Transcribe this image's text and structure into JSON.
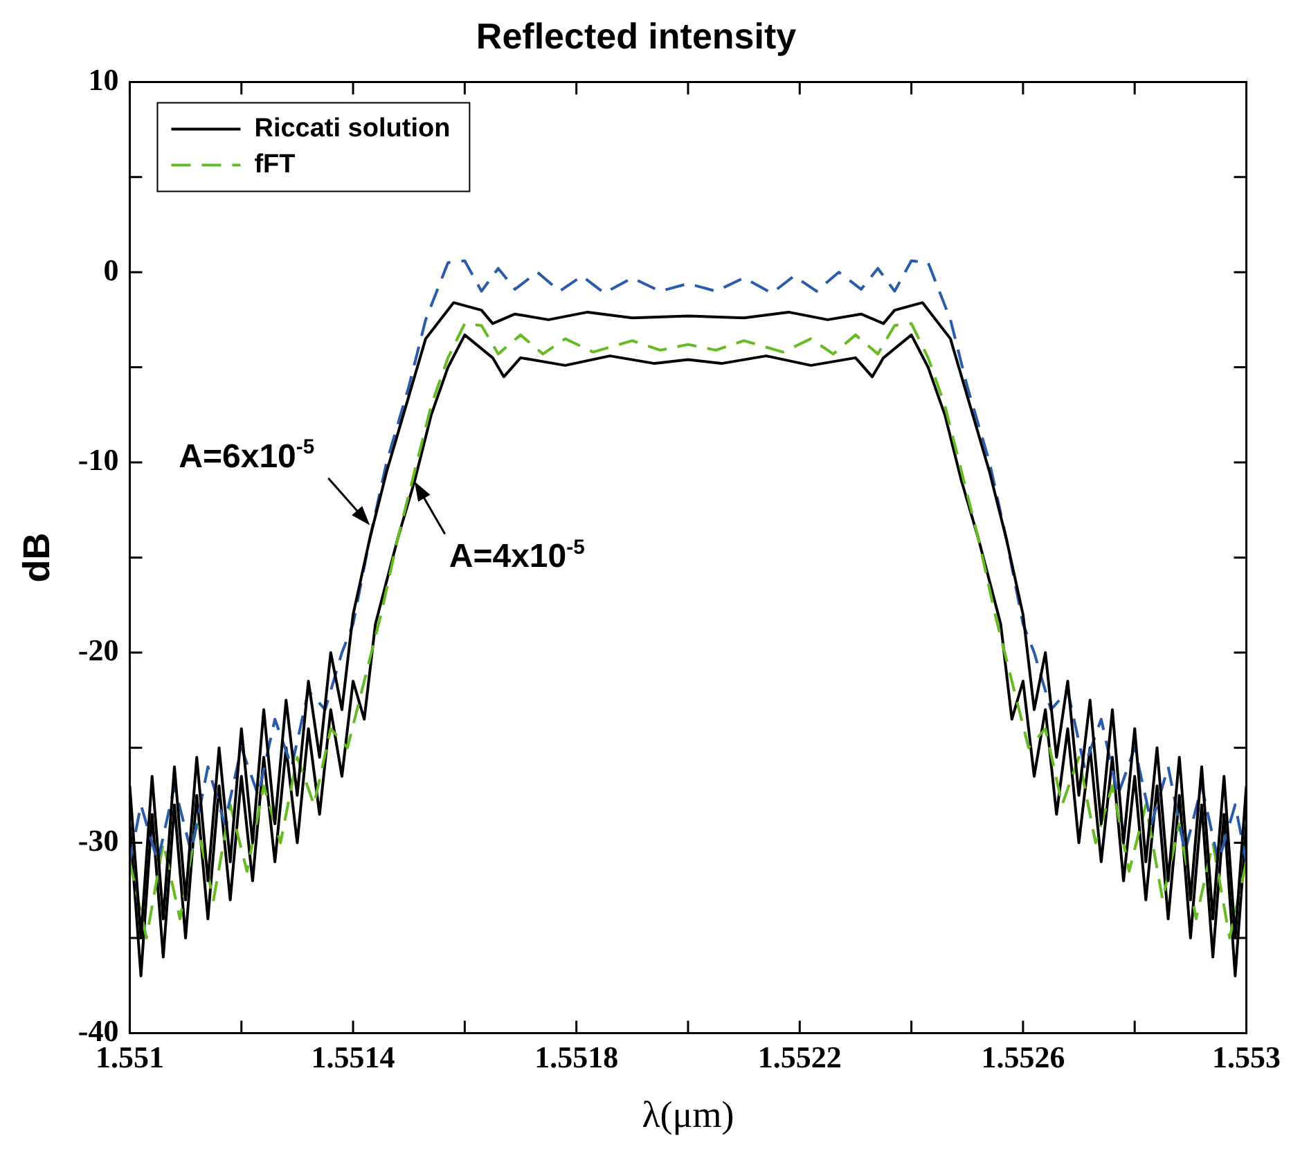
{
  "chart_data": {
    "type": "line",
    "title": "Reflected intensity",
    "xlabel": "λ(μm)",
    "ylabel": "dB",
    "xlim": [
      1.551,
      1.553
    ],
    "xticks": [
      1.551,
      {
        "value": 1.5512,
        "label": null
      },
      1.5514,
      {
        "value": 1.5516,
        "label": null
      },
      1.5518,
      {
        "value": 1.552,
        "label": null
      },
      1.5522,
      {
        "value": 1.5524,
        "label": null
      },
      1.5526,
      {
        "value": 1.5528,
        "label": null
      },
      1.553
    ],
    "ylim": [
      -40,
      10
    ],
    "yticks": [
      -40,
      {
        "value": -35,
        "label": null
      },
      -30,
      {
        "value": -25,
        "label": null
      },
      -20,
      {
        "value": -15,
        "label": null
      },
      -10,
      {
        "value": -5,
        "label": null
      },
      0,
      {
        "value": 5,
        "label": null
      },
      10
    ],
    "legend": "top left",
    "marker": "none",
    "annotations": [
      {
        "text": "A=6x10$^{-5}$",
        "x": 1.55143,
        "y": -13.3
      },
      {
        "text": "A=4x10$^{-5}$",
        "x": 1.55151,
        "y": -11
      }
    ],
    "series": [
      {
        "color": "#000000",
        "line_style": "solid",
        "name": "Riccati solution",
        "x": [
          1.551,
          1.55102,
          1.55104,
          1.55106,
          1.55108,
          1.5511,
          1.55112,
          1.55114,
          1.55116,
          1.55118,
          1.5512,
          1.55122,
          1.55124,
          1.55126,
          1.55128,
          1.5513,
          1.55132,
          1.55134,
          1.55136,
          1.55138,
          1.5514,
          1.55143,
          1.55146,
          1.5515,
          1.55153,
          1.55158,
          1.55163,
          1.55165,
          1.55169,
          1.55175,
          1.55182,
          1.5519,
          1.552,
          1.5521,
          1.55218,
          1.55225,
          1.55231,
          1.55235,
          1.55237,
          1.55242,
          1.55247,
          1.5525,
          1.55254,
          1.55257,
          1.5526,
          1.55262,
          1.55264,
          1.55266,
          1.55268,
          1.5527,
          1.55272,
          1.55274,
          1.55276,
          1.55278,
          1.5528,
          1.55282,
          1.55284,
          1.55286,
          1.55288,
          1.5529,
          1.55292,
          1.55294,
          1.55296,
          1.55298,
          1.553
        ],
        "values": [
          -27,
          -35,
          -26.5,
          -34,
          -26,
          -33,
          -25.5,
          -32,
          -25,
          -31,
          -24,
          -30,
          -23,
          -29,
          -22.5,
          -27.5,
          -21.5,
          -25.5,
          -20,
          -23,
          -18,
          -14,
          -10.5,
          -6.5,
          -3.5,
          -1.6,
          -2,
          -2.7,
          -2.2,
          -2.5,
          -2.1,
          -2.4,
          -2.3,
          -2.4,
          -2.1,
          -2.5,
          -2.2,
          -2.7,
          -2,
          -1.6,
          -3.5,
          -6.5,
          -10.5,
          -14,
          -18,
          -23,
          -20,
          -25.5,
          -21.5,
          -27.5,
          -22.5,
          -29,
          -23,
          -30,
          -24,
          -31,
          -25,
          -32,
          -25.5,
          -33,
          -26,
          -34,
          -26.5,
          -35,
          -27
        ]
      },
      {
        "color": "#2a5caa",
        "line_style": "dashed",
        "x": [
          1.551,
          1.55102,
          1.55105,
          1.55108,
          1.55111,
          1.55114,
          1.55117,
          1.5512,
          1.55123,
          1.55126,
          1.55129,
          1.55132,
          1.55135,
          1.55138,
          1.5514,
          1.55143,
          1.55146,
          1.5515,
          1.55153,
          1.55157,
          1.5516,
          1.55163,
          1.55166,
          1.55169,
          1.55173,
          1.55177,
          1.55181,
          1.55185,
          1.5519,
          1.55195,
          1.552,
          1.55205,
          1.5521,
          1.55215,
          1.55219,
          1.55223,
          1.55227,
          1.55231,
          1.55234,
          1.55237,
          1.5524,
          1.55243,
          1.55247,
          1.5525,
          1.55254,
          1.55257,
          1.5526,
          1.55262,
          1.55265,
          1.55268,
          1.55271,
          1.55274,
          1.55277,
          1.5528,
          1.55283,
          1.55286,
          1.55289,
          1.55292,
          1.55295,
          1.55298,
          1.553
        ],
        "values": [
          -31,
          -28,
          -31,
          -27,
          -30.5,
          -26,
          -29,
          -25,
          -27.5,
          -23.5,
          -26,
          -22,
          -23,
          -20,
          -18.5,
          -14,
          -10,
          -6,
          -2.5,
          0.5,
          0.6,
          -1,
          0.2,
          -0.9,
          0,
          -1,
          -0.2,
          -1.1,
          -0.3,
          -1,
          -0.6,
          -1,
          -0.3,
          -1.1,
          -0.2,
          -1,
          0,
          -0.9,
          0.2,
          -1,
          0.6,
          0.5,
          -2.5,
          -6,
          -10,
          -14,
          -18.5,
          -20,
          -23,
          -22,
          -26,
          -23.5,
          -27.5,
          -25,
          -29,
          -26,
          -30.5,
          -27,
          -31,
          -28,
          -31
        ]
      },
      {
        "color": "#66bb22",
        "line_style": "dashed",
        "name": "fFT",
        "x": [
          1.551,
          1.55103,
          1.55106,
          1.55109,
          1.55112,
          1.55115,
          1.55118,
          1.55121,
          1.55124,
          1.55127,
          1.5513,
          1.55133,
          1.55136,
          1.55139,
          1.55142,
          1.55145,
          1.55148,
          1.55151,
          1.55154,
          1.55157,
          1.5516,
          1.55163,
          1.55166,
          1.5517,
          1.55174,
          1.55178,
          1.55183,
          1.5519,
          1.55195,
          1.552,
          1.55205,
          1.5521,
          1.55217,
          1.55222,
          1.55226,
          1.5523,
          1.55234,
          1.55237,
          1.5524,
          1.55243,
          1.55246,
          1.55249,
          1.55252,
          1.55255,
          1.55258,
          1.55261,
          1.55264,
          1.55267,
          1.5527,
          1.55273,
          1.55276,
          1.55279,
          1.55282,
          1.55285,
          1.55288,
          1.55291,
          1.55294,
          1.55297,
          1.553
        ],
        "values": [
          -31,
          -35,
          -30,
          -34,
          -29,
          -33,
          -28,
          -31.5,
          -27,
          -30,
          -25.5,
          -28,
          -24,
          -25,
          -21.5,
          -18,
          -14,
          -10.5,
          -7,
          -4.5,
          -2.7,
          -2.8,
          -4.3,
          -3.3,
          -4.3,
          -3.5,
          -4.2,
          -3.6,
          -4.1,
          -3.8,
          -4.1,
          -3.6,
          -4.2,
          -3.5,
          -4.3,
          -3.3,
          -4.3,
          -2.8,
          -2.7,
          -4.5,
          -7,
          -10.5,
          -14,
          -18,
          -21.5,
          -25,
          -24,
          -28,
          -25.5,
          -30,
          -27,
          -31.5,
          -28,
          -33,
          -29,
          -34,
          -30,
          -35,
          -31
        ]
      },
      {
        "color": "#000000",
        "line_style": "solid",
        "x": [
          1.551,
          1.55102,
          1.55104,
          1.55106,
          1.55108,
          1.5511,
          1.55112,
          1.55114,
          1.55116,
          1.55118,
          1.5512,
          1.55122,
          1.55124,
          1.55126,
          1.55128,
          1.5513,
          1.55132,
          1.55134,
          1.55136,
          1.55138,
          1.5514,
          1.55142,
          1.55144,
          1.55148,
          1.55151,
          1.55154,
          1.55157,
          1.5516,
          1.55165,
          1.55167,
          1.5517,
          1.55178,
          1.55186,
          1.55194,
          1.552,
          1.55206,
          1.55214,
          1.55222,
          1.5523,
          1.55233,
          1.55235,
          1.5524,
          1.55243,
          1.55246,
          1.55249,
          1.55252,
          1.55256,
          1.55258,
          1.5526,
          1.55262,
          1.55264,
          1.55266,
          1.55268,
          1.5527,
          1.55272,
          1.55274,
          1.55276,
          1.55278,
          1.5528,
          1.55282,
          1.55284,
          1.55286,
          1.55288,
          1.5529,
          1.55292,
          1.55294,
          1.55296,
          1.55298,
          1.553
        ],
        "values": [
          -29,
          -37,
          -28.5,
          -36,
          -28,
          -35,
          -27.5,
          -34,
          -27,
          -33,
          -26.5,
          -32,
          -25.5,
          -31,
          -25,
          -30,
          -24,
          -28.5,
          -23,
          -26.5,
          -21.5,
          -23.5,
          -18.5,
          -14,
          -11,
          -7.5,
          -5,
          -3.3,
          -4.5,
          -5.5,
          -4.5,
          -4.9,
          -4.4,
          -4.8,
          -4.6,
          -4.8,
          -4.4,
          -4.9,
          -4.5,
          -5.5,
          -4.5,
          -3.3,
          -5,
          -7.5,
          -11,
          -14,
          -18.5,
          -23.5,
          -21.5,
          -26.5,
          -23,
          -28.5,
          -24,
          -30,
          -25,
          -31,
          -25.5,
          -32,
          -26.5,
          -33,
          -27,
          -34,
          -27.5,
          -35,
          -28,
          -36,
          -28.5,
          -37,
          -29
        ]
      }
    ]
  }
}
